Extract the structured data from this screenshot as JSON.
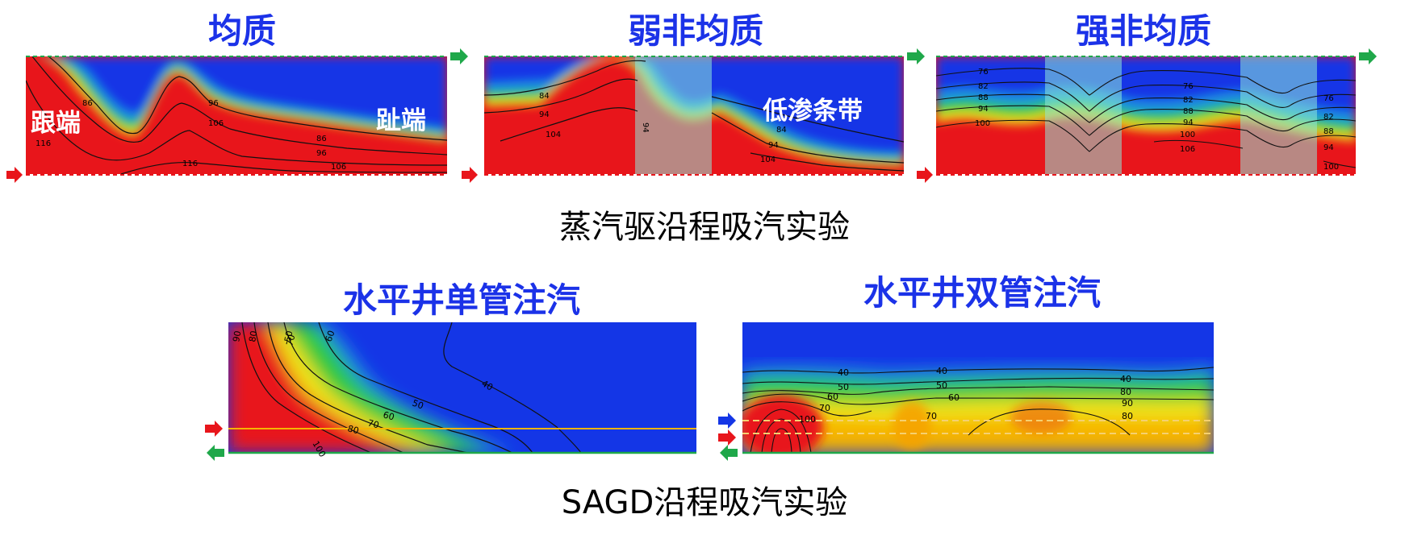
{
  "top_row": {
    "panels": [
      {
        "title": "均质",
        "labels": {
          "heel": "跟端",
          "toe": "趾端"
        },
        "contours": [
          "86",
          "96",
          "106",
          "116",
          "86",
          "96",
          "106",
          "116"
        ]
      },
      {
        "title": "弱非均质",
        "labels": {
          "band": "低渗条带"
        },
        "contours": [
          "84",
          "94",
          "104",
          "94",
          "104",
          "84",
          "94"
        ]
      },
      {
        "title": "强非均质",
        "contours": [
          "76",
          "82",
          "88",
          "94",
          "100",
          "76",
          "82",
          "88",
          "94",
          "100",
          "106",
          "76",
          "82",
          "88",
          "94",
          "100"
        ]
      }
    ],
    "caption": "蒸汽驱沿程吸汽实验"
  },
  "bottom_row": {
    "panels": [
      {
        "title": "水平井单管注汽",
        "contours": [
          "90",
          "80",
          "70",
          "60",
          "50",
          "40",
          "60",
          "70",
          "80",
          "100",
          "50"
        ]
      },
      {
        "title": "水平井双管注汽",
        "contours": [
          "40",
          "40",
          "50",
          "60",
          "70",
          "80",
          "40",
          "50",
          "60",
          "70",
          "80",
          "90",
          "100"
        ]
      }
    ],
    "caption": "SAGD沿程吸汽实验"
  },
  "colors": {
    "title": "#1b32e8",
    "hot": "#e8151b",
    "cold": "#1436e6",
    "green_arrow": "#1fa84a",
    "blue_arrow": "#1436e6",
    "well_line": "#f5b400"
  }
}
